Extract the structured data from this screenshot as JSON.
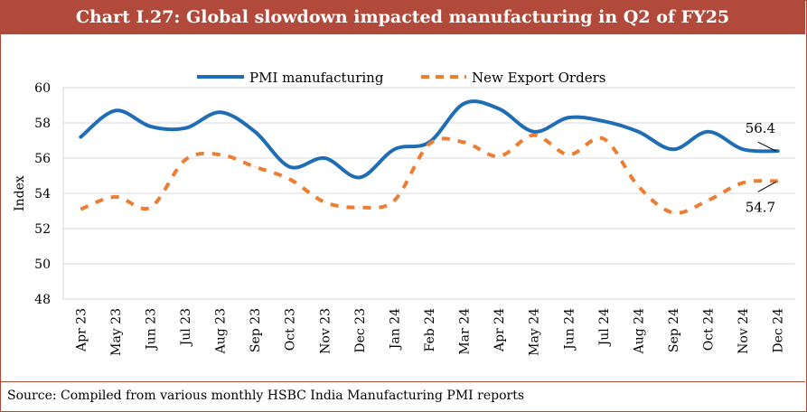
{
  "title": "Chart I.27: Global slowdown impacted manufacturing in Q2 of FY25",
  "source": "Source: Compiled from various monthly HSBC India Manufacturing PMI reports",
  "chart_data": {
    "type": "line",
    "title": "Chart I.27: Global slowdown impacted manufacturing in Q2 of FY25",
    "xlabel": "",
    "ylabel": "Index",
    "ylim": [
      48,
      60
    ],
    "yticks": [
      48,
      50,
      52,
      54,
      56,
      58,
      60
    ],
    "grid": true,
    "legend": "top",
    "categories": [
      "Apr 23",
      "May 23",
      "Jun 23",
      "Jul 23",
      "Aug 23",
      "Sep 23",
      "Oct 23",
      "Nov 23",
      "Dec 23",
      "Jan 24",
      "Feb 24",
      "Mar 24",
      "Apr 24",
      "May 24",
      "Jun 24",
      "Jul 24",
      "Aug 24",
      "Sep 24",
      "Oct 24",
      "Nov 24",
      "Dec 24"
    ],
    "series": [
      {
        "name": "PMI manufacturing",
        "color": "#1f6db5",
        "style": "solid",
        "values": [
          57.2,
          58.7,
          57.8,
          57.7,
          58.6,
          57.5,
          55.5,
          56.0,
          54.9,
          56.5,
          56.9,
          59.1,
          58.8,
          57.5,
          58.3,
          58.1,
          57.5,
          56.5,
          57.5,
          56.5,
          56.4
        ]
      },
      {
        "name": "New Export Orders",
        "color": "#ed7d31",
        "style": "dashed",
        "values": [
          53.1,
          53.8,
          53.2,
          55.9,
          56.2,
          55.5,
          54.8,
          53.5,
          53.2,
          53.6,
          56.8,
          56.9,
          56.1,
          57.3,
          56.2,
          57.1,
          54.4,
          52.9,
          53.6,
          54.6,
          54.7
        ]
      }
    ],
    "annotations": [
      "56.4",
      "54.7"
    ]
  }
}
